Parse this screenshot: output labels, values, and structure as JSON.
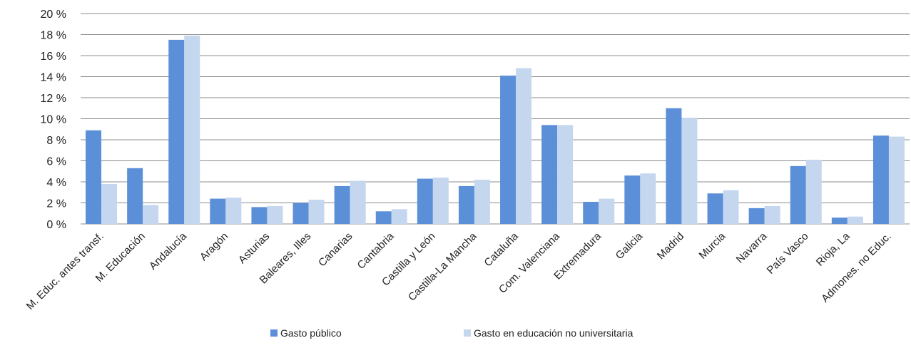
{
  "chart_data": {
    "type": "bar",
    "categories": [
      "M. Educ. antes transf.",
      "M. Educación",
      "Andalucía",
      "Aragón",
      "Asturias",
      "Baleares, Illes",
      "Canarias",
      "Cantabria",
      "Castilla y León",
      "Castilla-La Mancha",
      "Cataluña",
      "Com. Valenciana",
      "Extremadura",
      "Galicia",
      "Madrid",
      "Murcia",
      "Navarra",
      "País Vasco",
      "Rioja, La",
      "Admones. no Educ."
    ],
    "series": [
      {
        "name": "Gasto público",
        "color": "#5b8fd8",
        "values": [
          8.9,
          5.3,
          17.5,
          2.4,
          1.6,
          2.0,
          3.6,
          1.2,
          4.3,
          3.6,
          14.1,
          9.4,
          2.1,
          4.6,
          11.0,
          2.9,
          1.5,
          5.5,
          0.6,
          8.4
        ]
      },
      {
        "name": "Gasto en educación no universitaria",
        "color": "#c5d7ef",
        "values": [
          3.8,
          1.8,
          17.9,
          2.5,
          1.7,
          2.3,
          4.1,
          1.4,
          4.4,
          4.2,
          14.8,
          9.4,
          2.4,
          4.8,
          10.1,
          3.2,
          1.7,
          6.1,
          0.7,
          8.3
        ]
      }
    ],
    "y_ticks": [
      "0 %",
      "2 %",
      "4 %",
      "6 %",
      "8 %",
      "10 %",
      "12 %",
      "14 %",
      "16 %",
      "18 %",
      "20 %"
    ],
    "ylim": [
      0,
      20
    ],
    "grid": true,
    "legend_position": "bottom"
  }
}
